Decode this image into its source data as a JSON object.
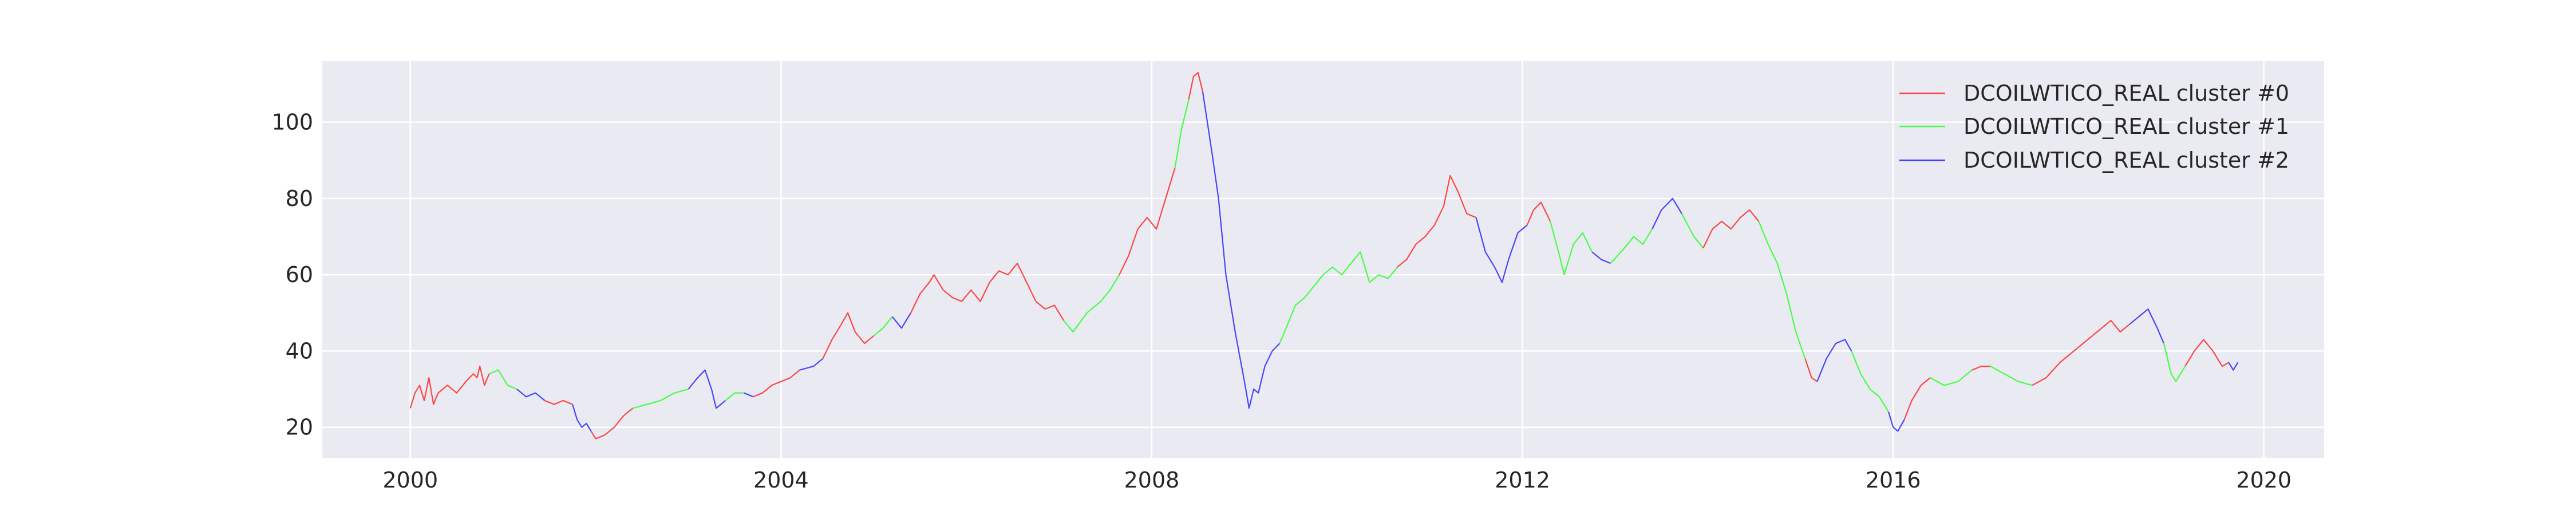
{
  "chart_data": {
    "type": "line",
    "title": "",
    "xlabel": "",
    "ylabel": "",
    "xlim": [
      1999.05,
      2020.65
    ],
    "ylim": [
      12,
      116
    ],
    "xticks": [
      2000,
      2004,
      2008,
      2012,
      2016,
      2020
    ],
    "xtick_labels": [
      "2000",
      "2004",
      "2008",
      "2012",
      "2016",
      "2020"
    ],
    "yticks": [
      20,
      40,
      60,
      80,
      100
    ],
    "ytick_labels": [
      "20",
      "40",
      "60",
      "80",
      "100"
    ],
    "grid": true,
    "legend_position": "top-right",
    "background_color": "#EAEAF2",
    "grid_color": "#FFFFFF",
    "series": [
      {
        "name": "DCOILWTICO_REAL cluster #0",
        "color": "#FF4545"
      },
      {
        "name": "DCOILWTICO_REAL cluster #1",
        "color": "#45FF45"
      },
      {
        "name": "DCOILWTICO_REAL cluster #2",
        "color": "#4545FF"
      }
    ],
    "segments": [
      {
        "cluster": 0,
        "points": [
          [
            2000.0,
            25
          ],
          [
            2000.05,
            29
          ],
          [
            2000.1,
            31
          ],
          [
            2000.15,
            27
          ],
          [
            2000.2,
            33
          ],
          [
            2000.25,
            26
          ],
          [
            2000.3,
            29
          ],
          [
            2000.4,
            31
          ],
          [
            2000.5,
            29
          ],
          [
            2000.6,
            32
          ],
          [
            2000.68,
            34
          ],
          [
            2000.72,
            33
          ],
          [
            2000.75,
            36
          ],
          [
            2000.8,
            31
          ],
          [
            2000.85,
            34
          ]
        ]
      },
      {
        "cluster": 1,
        "points": [
          [
            2000.85,
            34
          ],
          [
            2000.95,
            35
          ],
          [
            2001.05,
            31
          ],
          [
            2001.15,
            30
          ]
        ]
      },
      {
        "cluster": 2,
        "points": [
          [
            2001.15,
            30
          ],
          [
            2001.25,
            28
          ],
          [
            2001.35,
            29
          ],
          [
            2001.45,
            27
          ]
        ]
      },
      {
        "cluster": 0,
        "points": [
          [
            2001.45,
            27
          ],
          [
            2001.55,
            26
          ],
          [
            2001.65,
            27
          ],
          [
            2001.75,
            26
          ]
        ]
      },
      {
        "cluster": 2,
        "points": [
          [
            2001.75,
            26
          ],
          [
            2001.8,
            22
          ],
          [
            2001.85,
            20
          ],
          [
            2001.9,
            21
          ],
          [
            2001.95,
            19
          ]
        ]
      },
      {
        "cluster": 0,
        "points": [
          [
            2001.95,
            19
          ],
          [
            2002.0,
            17
          ],
          [
            2002.1,
            18
          ],
          [
            2002.2,
            20
          ],
          [
            2002.3,
            23
          ],
          [
            2002.4,
            25
          ]
        ]
      },
      {
        "cluster": 1,
        "points": [
          [
            2002.4,
            25
          ],
          [
            2002.55,
            26
          ],
          [
            2002.7,
            27
          ],
          [
            2002.85,
            29
          ],
          [
            2003.0,
            30
          ]
        ]
      },
      {
        "cluster": 2,
        "points": [
          [
            2003.0,
            30
          ],
          [
            2003.1,
            33
          ],
          [
            2003.18,
            35
          ],
          [
            2003.25,
            30
          ],
          [
            2003.3,
            25
          ],
          [
            2003.4,
            27
          ]
        ]
      },
      {
        "cluster": 1,
        "points": [
          [
            2003.4,
            27
          ],
          [
            2003.5,
            29
          ],
          [
            2003.6,
            29
          ]
        ]
      },
      {
        "cluster": 2,
        "points": [
          [
            2003.6,
            29
          ],
          [
            2003.7,
            28
          ]
        ]
      },
      {
        "cluster": 0,
        "points": [
          [
            2003.7,
            28
          ],
          [
            2003.8,
            29
          ],
          [
            2003.9,
            31
          ],
          [
            2004.0,
            32
          ],
          [
            2004.1,
            33
          ],
          [
            2004.2,
            35
          ]
        ]
      },
      {
        "cluster": 2,
        "points": [
          [
            2004.2,
            35
          ],
          [
            2004.35,
            36
          ],
          [
            2004.45,
            38
          ]
        ]
      },
      {
        "cluster": 0,
        "points": [
          [
            2004.45,
            38
          ],
          [
            2004.55,
            43
          ],
          [
            2004.65,
            47
          ],
          [
            2004.72,
            50
          ],
          [
            2004.8,
            45
          ],
          [
            2004.9,
            42
          ],
          [
            2005.0,
            44
          ]
        ]
      },
      {
        "cluster": 1,
        "points": [
          [
            2005.0,
            44
          ],
          [
            2005.1,
            46
          ],
          [
            2005.2,
            49
          ]
        ]
      },
      {
        "cluster": 2,
        "points": [
          [
            2005.2,
            49
          ],
          [
            2005.3,
            46
          ],
          [
            2005.4,
            50
          ]
        ]
      },
      {
        "cluster": 0,
        "points": [
          [
            2005.4,
            50
          ],
          [
            2005.5,
            55
          ],
          [
            2005.6,
            58
          ],
          [
            2005.65,
            60
          ],
          [
            2005.75,
            56
          ],
          [
            2005.85,
            54
          ],
          [
            2005.95,
            53
          ],
          [
            2006.05,
            56
          ],
          [
            2006.15,
            53
          ],
          [
            2006.25,
            58
          ],
          [
            2006.35,
            61
          ],
          [
            2006.45,
            60
          ],
          [
            2006.55,
            63
          ],
          [
            2006.65,
            58
          ],
          [
            2006.75,
            53
          ],
          [
            2006.85,
            51
          ],
          [
            2006.95,
            52
          ],
          [
            2007.05,
            48
          ]
        ]
      },
      {
        "cluster": 1,
        "points": [
          [
            2007.05,
            48
          ],
          [
            2007.15,
            45
          ],
          [
            2007.3,
            50
          ],
          [
            2007.45,
            53
          ],
          [
            2007.55,
            56
          ],
          [
            2007.65,
            60
          ]
        ]
      },
      {
        "cluster": 0,
        "points": [
          [
            2007.65,
            60
          ],
          [
            2007.75,
            65
          ],
          [
            2007.85,
            72
          ],
          [
            2007.95,
            75
          ],
          [
            2008.05,
            72
          ],
          [
            2008.15,
            80
          ],
          [
            2008.25,
            88
          ]
        ]
      },
      {
        "cluster": 1,
        "points": [
          [
            2008.25,
            88
          ],
          [
            2008.32,
            98
          ],
          [
            2008.4,
            106
          ]
        ]
      },
      {
        "cluster": 0,
        "points": [
          [
            2008.4,
            106
          ],
          [
            2008.45,
            112
          ],
          [
            2008.5,
            113
          ],
          [
            2008.55,
            108
          ]
        ]
      },
      {
        "cluster": 2,
        "points": [
          [
            2008.55,
            108
          ],
          [
            2008.6,
            100
          ],
          [
            2008.65,
            92
          ],
          [
            2008.72,
            80
          ],
          [
            2008.8,
            60
          ],
          [
            2008.9,
            45
          ],
          [
            2009.0,
            32
          ],
          [
            2009.05,
            25
          ],
          [
            2009.1,
            30
          ],
          [
            2009.15,
            29
          ],
          [
            2009.22,
            36
          ],
          [
            2009.3,
            40
          ],
          [
            2009.38,
            42
          ]
        ]
      },
      {
        "cluster": 1,
        "points": [
          [
            2009.38,
            42
          ],
          [
            2009.45,
            46
          ],
          [
            2009.55,
            52
          ],
          [
            2009.65,
            54
          ],
          [
            2009.75,
            57
          ],
          [
            2009.85,
            60
          ],
          [
            2009.95,
            62
          ],
          [
            2010.05,
            60
          ],
          [
            2010.15,
            63
          ],
          [
            2010.25,
            66
          ],
          [
            2010.35,
            58
          ],
          [
            2010.45,
            60
          ],
          [
            2010.55,
            59
          ],
          [
            2010.65,
            62
          ]
        ]
      },
      {
        "cluster": 0,
        "points": [
          [
            2010.65,
            62
          ],
          [
            2010.75,
            64
          ],
          [
            2010.85,
            68
          ],
          [
            2010.95,
            70
          ],
          [
            2011.05,
            73
          ],
          [
            2011.15,
            78
          ],
          [
            2011.22,
            86
          ],
          [
            2011.3,
            82
          ],
          [
            2011.4,
            76
          ],
          [
            2011.5,
            75
          ]
        ]
      },
      {
        "cluster": 2,
        "points": [
          [
            2011.5,
            75
          ],
          [
            2011.6,
            66
          ],
          [
            2011.7,
            62
          ],
          [
            2011.78,
            58
          ],
          [
            2011.85,
            64
          ],
          [
            2011.95,
            71
          ],
          [
            2012.05,
            73
          ]
        ]
      },
      {
        "cluster": 0,
        "points": [
          [
            2012.05,
            73
          ],
          [
            2012.12,
            77
          ],
          [
            2012.2,
            79
          ],
          [
            2012.3,
            74
          ]
        ]
      },
      {
        "cluster": 1,
        "points": [
          [
            2012.3,
            74
          ],
          [
            2012.4,
            65
          ],
          [
            2012.45,
            60
          ],
          [
            2012.55,
            68
          ],
          [
            2012.65,
            71
          ],
          [
            2012.75,
            66
          ]
        ]
      },
      {
        "cluster": 2,
        "points": [
          [
            2012.75,
            66
          ],
          [
            2012.85,
            64
          ],
          [
            2012.95,
            63
          ]
        ]
      },
      {
        "cluster": 1,
        "points": [
          [
            2012.95,
            63
          ],
          [
            2013.1,
            67
          ],
          [
            2013.2,
            70
          ],
          [
            2013.3,
            68
          ],
          [
            2013.4,
            72
          ]
        ]
      },
      {
        "cluster": 2,
        "points": [
          [
            2013.4,
            72
          ],
          [
            2013.5,
            77
          ],
          [
            2013.62,
            80
          ],
          [
            2013.72,
            76
          ]
        ]
      },
      {
        "cluster": 1,
        "points": [
          [
            2013.72,
            76
          ],
          [
            2013.85,
            70
          ],
          [
            2013.95,
            67
          ]
        ]
      },
      {
        "cluster": 0,
        "points": [
          [
            2013.95,
            67
          ],
          [
            2014.05,
            72
          ],
          [
            2014.15,
            74
          ],
          [
            2014.25,
            72
          ],
          [
            2014.35,
            75
          ],
          [
            2014.45,
            77
          ],
          [
            2014.55,
            74
          ]
        ]
      },
      {
        "cluster": 1,
        "points": [
          [
            2014.55,
            74
          ],
          [
            2014.65,
            68
          ],
          [
            2014.75,
            63
          ],
          [
            2014.85,
            55
          ],
          [
            2014.95,
            45
          ],
          [
            2015.05,
            38
          ]
        ]
      },
      {
        "cluster": 0,
        "points": [
          [
            2015.05,
            38
          ],
          [
            2015.12,
            33
          ],
          [
            2015.18,
            32
          ]
        ]
      },
      {
        "cluster": 2,
        "points": [
          [
            2015.18,
            32
          ],
          [
            2015.28,
            38
          ],
          [
            2015.38,
            42
          ],
          [
            2015.48,
            43
          ],
          [
            2015.55,
            40
          ]
        ]
      },
      {
        "cluster": 1,
        "points": [
          [
            2015.55,
            40
          ],
          [
            2015.65,
            34
          ],
          [
            2015.75,
            30
          ],
          [
            2015.85,
            28
          ],
          [
            2015.95,
            24
          ]
        ]
      },
      {
        "cluster": 2,
        "points": [
          [
            2015.95,
            24
          ],
          [
            2016.0,
            20
          ],
          [
            2016.05,
            19
          ],
          [
            2016.12,
            22
          ]
        ]
      },
      {
        "cluster": 0,
        "points": [
          [
            2016.12,
            22
          ],
          [
            2016.2,
            27
          ],
          [
            2016.3,
            31
          ],
          [
            2016.4,
            33
          ]
        ]
      },
      {
        "cluster": 1,
        "points": [
          [
            2016.4,
            33
          ],
          [
            2016.55,
            31
          ],
          [
            2016.7,
            32
          ],
          [
            2016.85,
            35
          ]
        ]
      },
      {
        "cluster": 0,
        "points": [
          [
            2016.85,
            35
          ],
          [
            2016.95,
            36
          ],
          [
            2017.05,
            36
          ]
        ]
      },
      {
        "cluster": 1,
        "points": [
          [
            2017.05,
            36
          ],
          [
            2017.2,
            34
          ],
          [
            2017.35,
            32
          ],
          [
            2017.5,
            31
          ]
        ]
      },
      {
        "cluster": 0,
        "points": [
          [
            2017.5,
            31
          ],
          [
            2017.65,
            33
          ],
          [
            2017.8,
            37
          ],
          [
            2017.95,
            40
          ],
          [
            2018.1,
            43
          ],
          [
            2018.25,
            46
          ],
          [
            2018.35,
            48
          ],
          [
            2018.45,
            45
          ],
          [
            2018.55,
            47
          ]
        ]
      },
      {
        "cluster": 2,
        "points": [
          [
            2018.55,
            47
          ],
          [
            2018.65,
            49
          ],
          [
            2018.75,
            51
          ],
          [
            2018.85,
            46
          ],
          [
            2018.92,
            42
          ]
        ]
      },
      {
        "cluster": 1,
        "points": [
          [
            2018.92,
            42
          ],
          [
            2019.0,
            34
          ],
          [
            2019.05,
            32
          ],
          [
            2019.15,
            36
          ]
        ]
      },
      {
        "cluster": 0,
        "points": [
          [
            2019.15,
            36
          ],
          [
            2019.25,
            40
          ],
          [
            2019.35,
            43
          ],
          [
            2019.45,
            40
          ],
          [
            2019.55,
            36
          ],
          [
            2019.62,
            37
          ]
        ]
      },
      {
        "cluster": 2,
        "points": [
          [
            2019.62,
            37
          ],
          [
            2019.67,
            35
          ],
          [
            2019.72,
            37
          ]
        ]
      }
    ]
  }
}
